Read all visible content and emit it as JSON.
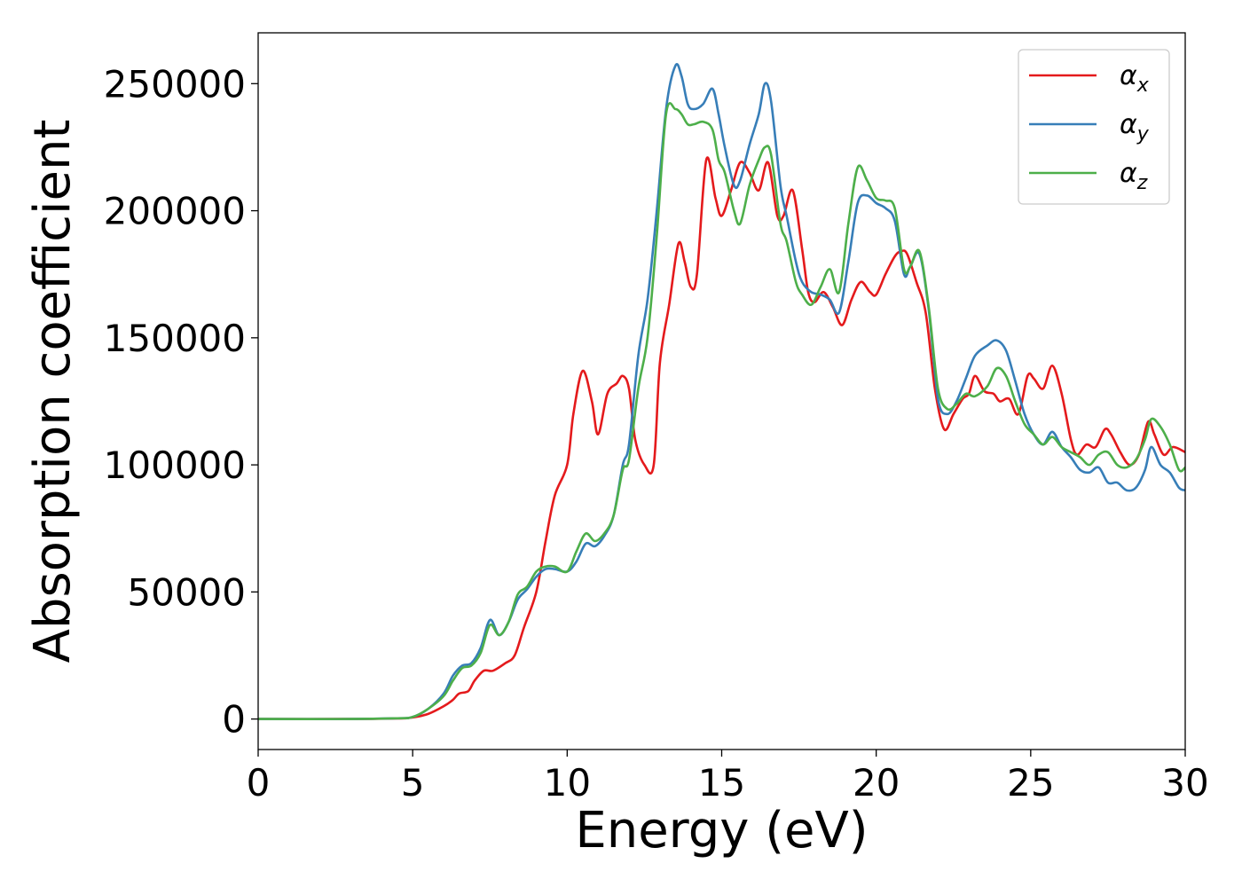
{
  "chart_data": {
    "type": "line",
    "title": "",
    "xlabel": "Energy (eV)",
    "ylabel": "Absorption coefficient",
    "xlim": [
      0,
      30
    ],
    "ylim": [
      -12000,
      270000
    ],
    "xticks": [
      0,
      5,
      10,
      15,
      20,
      25,
      30
    ],
    "yticks": [
      0,
      50000,
      100000,
      150000,
      200000,
      250000
    ],
    "grid": false,
    "legend_position": "top-right",
    "series": [
      {
        "name": "α",
        "subscript": "x",
        "color": "#e41a1c",
        "x": [
          0,
          3,
          4.5,
          5,
          5.5,
          6,
          6.3,
          6.5,
          6.8,
          7,
          7.3,
          7.6,
          8,
          8.3,
          8.6,
          9,
          9.3,
          9.6,
          10,
          10.2,
          10.5,
          10.8,
          11,
          11.3,
          11.6,
          11.8,
          12,
          12.2,
          12.5,
          12.8,
          13,
          13.3,
          13.6,
          13.8,
          14,
          14.2,
          14.5,
          14.8,
          15,
          15.3,
          15.6,
          15.9,
          16.2,
          16.5,
          16.8,
          17,
          17.3,
          17.6,
          17.8,
          18,
          18.3,
          18.6,
          18.9,
          19.2,
          19.5,
          19.8,
          20,
          20.3,
          20.6,
          20.8,
          21,
          21.3,
          21.6,
          21.9,
          22.2,
          22.5,
          22.8,
          23,
          23.2,
          23.5,
          23.8,
          24,
          24.3,
          24.6,
          24.9,
          25.1,
          25.4,
          25.7,
          26,
          26.3,
          26.5,
          26.8,
          27.1,
          27.4,
          27.6,
          27.9,
          28.2,
          28.5,
          28.8,
          29,
          29.3,
          29.6,
          30
        ],
        "y": [
          0,
          0,
          200,
          600,
          2000,
          5000,
          7500,
          10000,
          11000,
          15000,
          19000,
          19000,
          22000,
          25000,
          36000,
          50000,
          70000,
          88000,
          100000,
          120000,
          137000,
          125000,
          112000,
          128000,
          132000,
          135000,
          130000,
          110000,
          100000,
          100000,
          140000,
          163000,
          187000,
          180000,
          170000,
          175000,
          220000,
          205000,
          198000,
          208000,
          219000,
          215000,
          208000,
          219000,
          198000,
          198000,
          208000,
          185000,
          168000,
          164000,
          168000,
          162000,
          155000,
          165000,
          172000,
          168000,
          167000,
          175000,
          182000,
          184000,
          183000,
          172000,
          160000,
          130000,
          114000,
          120000,
          126000,
          128000,
          135000,
          129000,
          128000,
          125000,
          126000,
          120000,
          135000,
          134000,
          130000,
          139000,
          128000,
          110000,
          104000,
          108000,
          107000,
          114000,
          112000,
          105000,
          100000,
          104000,
          117000,
          112000,
          104000,
          107000,
          105000
        ]
      },
      {
        "name": "α",
        "subscript": "y",
        "color": "#377eb8",
        "x": [
          0,
          3,
          4.5,
          5,
          5.5,
          6,
          6.3,
          6.6,
          6.9,
          7.2,
          7.5,
          7.8,
          8.1,
          8.4,
          8.7,
          9,
          9.3,
          9.6,
          10,
          10.3,
          10.6,
          10.9,
          11.2,
          11.5,
          11.8,
          12,
          12.3,
          12.6,
          12.9,
          13.2,
          13.5,
          13.7,
          13.9,
          14.1,
          14.4,
          14.7,
          14.9,
          15.1,
          15.4,
          15.6,
          15.9,
          16.2,
          16.4,
          16.6,
          16.9,
          17.1,
          17.4,
          17.6,
          17.9,
          18.2,
          18.5,
          18.8,
          19.1,
          19.4,
          19.7,
          20,
          20.3,
          20.6,
          20.9,
          21.1,
          21.4,
          21.7,
          22,
          22.3,
          22.6,
          22.9,
          23.2,
          23.6,
          23.9,
          24.2,
          24.5,
          24.8,
          25.1,
          25.4,
          25.7,
          26,
          26.3,
          26.6,
          26.9,
          27.2,
          27.5,
          27.8,
          28.1,
          28.4,
          28.7,
          28.9,
          29.2,
          29.5,
          29.8,
          30
        ],
        "y": [
          0,
          0,
          300,
          800,
          4000,
          10000,
          17000,
          21000,
          22000,
          28000,
          39000,
          33000,
          38000,
          47000,
          51000,
          56000,
          59000,
          59000,
          58000,
          62000,
          69000,
          68000,
          72000,
          80000,
          100000,
          108000,
          143000,
          165000,
          200000,
          240000,
          257000,
          253000,
          242000,
          240000,
          242000,
          248000,
          238000,
          225000,
          210000,
          212000,
          226000,
          238000,
          250000,
          243000,
          210000,
          198000,
          180000,
          172000,
          168000,
          167000,
          165000,
          160000,
          180000,
          203000,
          206000,
          203000,
          201000,
          196000,
          175000,
          178000,
          183000,
          161000,
          126000,
          120000,
          125000,
          134000,
          143000,
          147000,
          149000,
          145000,
          133000,
          120000,
          112000,
          108000,
          113000,
          107000,
          103000,
          98000,
          97000,
          99000,
          93000,
          93000,
          90000,
          91000,
          98000,
          107000,
          100000,
          97000,
          91000,
          90000
        ]
      },
      {
        "name": "α",
        "subscript": "z",
        "color": "#4daf4a",
        "x": [
          0,
          3,
          4.5,
          5,
          5.5,
          6,
          6.3,
          6.6,
          6.9,
          7.2,
          7.5,
          7.8,
          8.1,
          8.4,
          8.7,
          9,
          9.3,
          9.6,
          10,
          10.3,
          10.6,
          10.9,
          11.2,
          11.5,
          11.8,
          12,
          12.3,
          12.6,
          12.9,
          13.2,
          13.5,
          13.7,
          13.9,
          14.1,
          14.4,
          14.7,
          14.9,
          15.1,
          15.4,
          15.6,
          15.9,
          16.2,
          16.4,
          16.6,
          16.9,
          17.1,
          17.4,
          17.6,
          17.9,
          18.2,
          18.5,
          18.8,
          19.1,
          19.4,
          19.7,
          20,
          20.3,
          20.6,
          20.9,
          21.1,
          21.4,
          21.7,
          22,
          22.3,
          22.6,
          22.9,
          23.2,
          23.6,
          23.9,
          24.2,
          24.5,
          24.8,
          25.1,
          25.4,
          25.7,
          26,
          26.3,
          26.6,
          26.9,
          27.2,
          27.5,
          27.8,
          28.1,
          28.4,
          28.7,
          28.9,
          29.2,
          29.5,
          29.8,
          30
        ],
        "y": [
          0,
          0,
          300,
          800,
          4000,
          9000,
          15000,
          20000,
          21000,
          26000,
          37000,
          33000,
          38000,
          49000,
          52000,
          58000,
          60000,
          60000,
          58000,
          66000,
          73000,
          70000,
          73000,
          80000,
          98000,
          102000,
          130000,
          150000,
          190000,
          238000,
          240000,
          238000,
          234000,
          234000,
          235000,
          232000,
          220000,
          215000,
          200000,
          195000,
          210000,
          220000,
          225000,
          222000,
          195000,
          188000,
          172000,
          167000,
          163000,
          170000,
          177000,
          168000,
          195000,
          217000,
          212000,
          205000,
          204000,
          201000,
          177000,
          178000,
          184000,
          162000,
          130000,
          122000,
          124000,
          128000,
          127000,
          131000,
          138000,
          135000,
          125000,
          116000,
          112000,
          108000,
          111000,
          107000,
          105000,
          103000,
          100000,
          104000,
          105000,
          100000,
          99000,
          102000,
          110000,
          118000,
          115000,
          108000,
          98000,
          99000
        ]
      }
    ]
  }
}
